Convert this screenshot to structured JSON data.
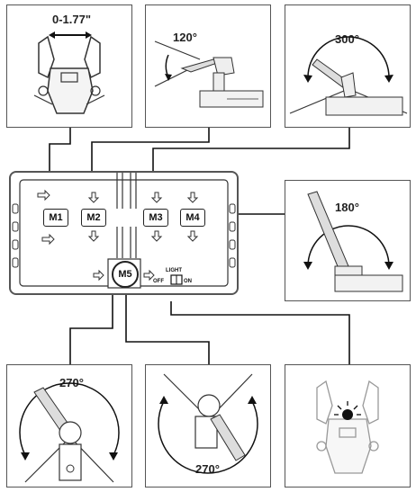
{
  "panels": {
    "gripper": {
      "label": "0-1.77\""
    },
    "wrist_tilt": {
      "label": "120°"
    },
    "elbow": {
      "label": "300°"
    },
    "shoulder": {
      "label": "180°"
    },
    "base_rotate_top": {
      "label": "270°"
    },
    "base_rotate_bottom": {
      "label": "270°"
    },
    "light": {
      "label": ""
    }
  },
  "controller": {
    "motors": [
      "M1",
      "M2",
      "M3",
      "M4"
    ],
    "m5": "M5",
    "switch": {
      "title": "LIGHT",
      "off": "OFF",
      "on": "ON"
    }
  }
}
